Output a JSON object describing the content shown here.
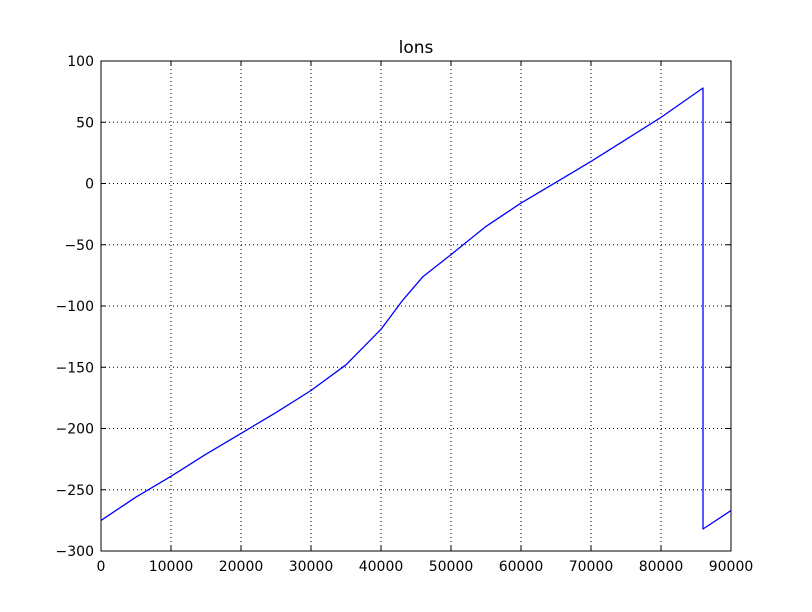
{
  "chart_data": {
    "type": "line",
    "title": "lons",
    "xlabel": "",
    "ylabel": "",
    "xlim": [
      0,
      90000
    ],
    "ylim": [
      -300,
      100
    ],
    "xticks": [
      0,
      10000,
      20000,
      30000,
      40000,
      50000,
      60000,
      70000,
      80000,
      90000
    ],
    "yticks": [
      -300,
      -250,
      -200,
      -150,
      -100,
      -50,
      0,
      50,
      100
    ],
    "xtick_labels": [
      "0",
      "10000",
      "20000",
      "30000",
      "40000",
      "50000",
      "60000",
      "70000",
      "80000",
      "90000"
    ],
    "ytick_labels": [
      "−300",
      "−250",
      "−200",
      "−150",
      "−100",
      "−50",
      "0",
      "50",
      "100"
    ],
    "grid": true,
    "series": [
      {
        "color": "#0000ff",
        "x": [
          0,
          5000,
          10000,
          15000,
          20000,
          25000,
          30000,
          35000,
          40000,
          43000,
          46000,
          50000,
          55000,
          60000,
          65000,
          70000,
          75000,
          80000,
          86000,
          86000,
          90000
        ],
        "y": [
          -275,
          -256,
          -239,
          -221,
          -204,
          -187,
          -169,
          -148,
          -119,
          -96,
          -76,
          -58,
          -35,
          -16,
          1,
          18,
          36,
          54,
          78,
          -282,
          -267
        ]
      }
    ]
  }
}
